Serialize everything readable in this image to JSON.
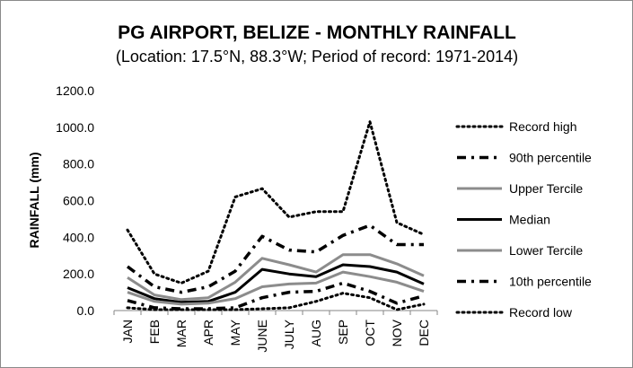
{
  "chart_data": {
    "type": "line",
    "title": "PG AIRPORT, BELIZE - MONTHLY RAINFALL",
    "subtitle": "(Location: 17.5°N, 88.3°W; Period of record: 1971-2014)",
    "xlabel": "",
    "ylabel": "RAINFALL (mm)",
    "categories": [
      "JAN",
      "FEB",
      "MAR",
      "APR",
      "MAY",
      "JUNE",
      "JULY",
      "AUG",
      "SEP",
      "OCT",
      "NOV",
      "DEC"
    ],
    "ylim": [
      0,
      1200
    ],
    "yticks": [
      "0.0",
      "200.0",
      "400.0",
      "600.0",
      "800.0",
      "1000.0",
      "1200.0"
    ],
    "grid": false,
    "legend_position": "right",
    "series": [
      {
        "name": "Record high",
        "color": "#000000",
        "style": "dotted",
        "width": 3,
        "values": [
          440,
          200,
          150,
          215,
          620,
          665,
          510,
          540,
          540,
          1030,
          480,
          415
        ]
      },
      {
        "name": "90th percentile",
        "color": "#000000",
        "style": "dashdot",
        "width": 3.5,
        "values": [
          240,
          130,
          100,
          130,
          215,
          405,
          330,
          320,
          410,
          465,
          360,
          360
        ]
      },
      {
        "name": "Upper Tercile",
        "color": "#8c8c8c",
        "style": "solid",
        "width": 3,
        "values": [
          180,
          85,
          60,
          70,
          155,
          285,
          250,
          210,
          305,
          305,
          255,
          190
        ]
      },
      {
        "name": "Median",
        "color": "#000000",
        "style": "solid",
        "width": 3,
        "values": [
          125,
          65,
          45,
          50,
          100,
          225,
          200,
          185,
          250,
          240,
          210,
          145
        ]
      },
      {
        "name": "Lower Tercile",
        "color": "#8c8c8c",
        "style": "solid",
        "width": 3,
        "values": [
          100,
          50,
          35,
          40,
          65,
          130,
          145,
          150,
          210,
          185,
          155,
          105
        ]
      },
      {
        "name": "10th percentile",
        "color": "#000000",
        "style": "dashdot",
        "width": 3.5,
        "values": [
          55,
          15,
          10,
          10,
          15,
          70,
          100,
          105,
          150,
          105,
          40,
          80
        ]
      },
      {
        "name": "Record low",
        "color": "#000000",
        "style": "dotted",
        "width": 3,
        "values": [
          15,
          5,
          5,
          5,
          5,
          10,
          15,
          50,
          95,
          70,
          5,
          35
        ]
      }
    ]
  }
}
